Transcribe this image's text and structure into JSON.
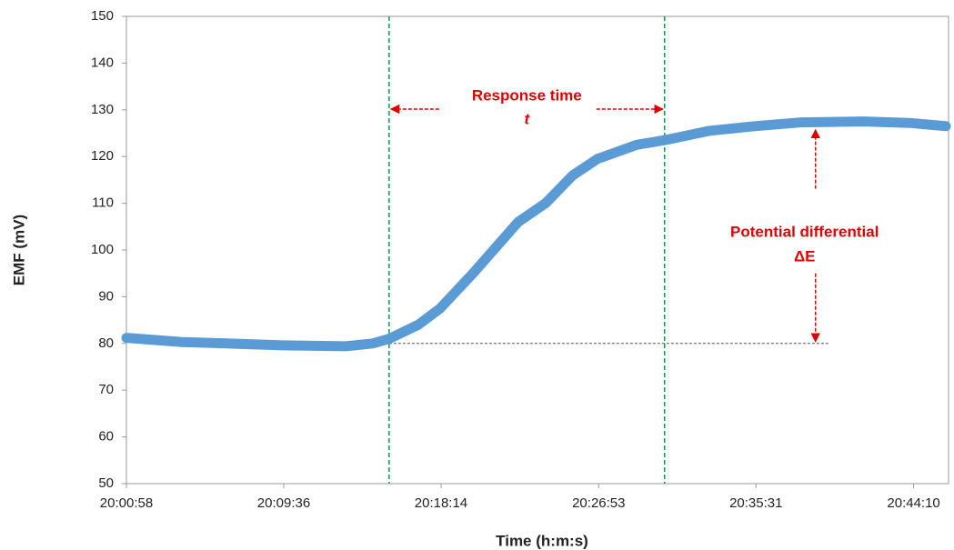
{
  "chart_data": {
    "type": "line",
    "x_label": "Time (h:m:s)",
    "y_label": "EMF (mV)",
    "x": [
      72058,
      72241,
      72390,
      72573,
      72780,
      72869,
      72923,
      73019,
      73091,
      73199,
      73348,
      73438,
      73528,
      73609,
      73738,
      73830,
      73977,
      74126,
      74277,
      74486,
      74636,
      74756
    ],
    "series": [
      {
        "name": "EMF",
        "color": "#5b9bd5",
        "values": [
          81.2,
          80.3,
          80.0,
          79.6,
          79.4,
          80.0,
          81.0,
          84.0,
          87.5,
          95.0,
          106.0,
          110.0,
          116.0,
          119.5,
          122.5,
          123.5,
          125.5,
          126.5,
          127.3,
          127.5,
          127.2,
          126.5
        ]
      }
    ],
    "xlim": [
      72058,
      74765
    ],
    "xticks": [
      {
        "value": 72058,
        "label": "20:00:58"
      },
      {
        "value": 72576,
        "label": "20:09:36"
      },
      {
        "value": 73094,
        "label": "20:18:14"
      },
      {
        "value": 73613,
        "label": "20:26:53"
      },
      {
        "value": 74131,
        "label": "20:35:31"
      },
      {
        "value": 74650,
        "label": "20:44:10"
      }
    ],
    "ylim": [
      50,
      150
    ],
    "yticks": [
      50,
      60,
      70,
      80,
      90,
      100,
      110,
      120,
      130,
      140,
      150
    ],
    "grid": false,
    "response_lines": [
      72923,
      73830
    ],
    "baseline": 80,
    "delta_x": 74327,
    "annotations": {
      "response_time": "Response time",
      "response_symbol": "t",
      "potential": "Potential differential",
      "potential_symbol": "ΔE"
    }
  }
}
